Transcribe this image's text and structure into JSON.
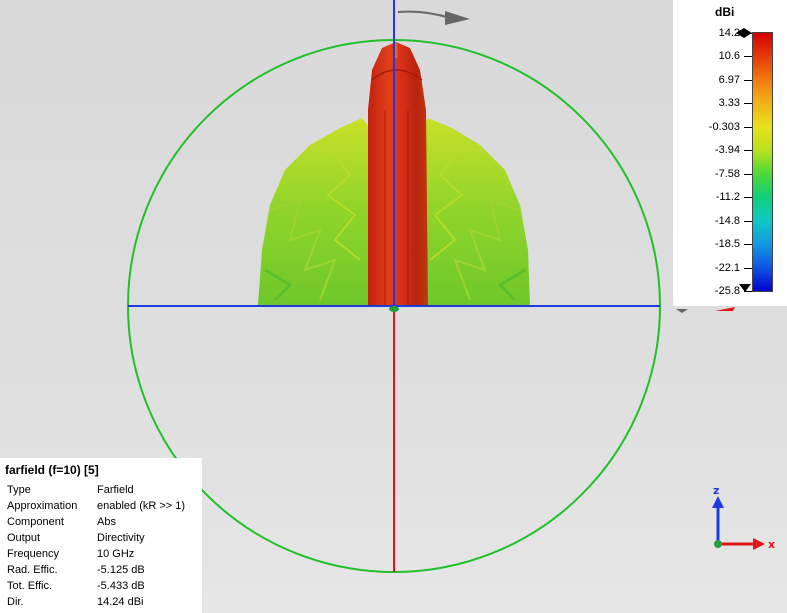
{
  "colorbar": {
    "unit": "dBi",
    "ticks": [
      "14.2",
      "10.6",
      "6.97",
      "3.33",
      "-0.303",
      "-3.94",
      "-7.58",
      "-11.2",
      "-14.8",
      "-18.5",
      "-22.1",
      "-25.8"
    ],
    "gradient": [
      "#d40000",
      "#e63a0a",
      "#f07a10",
      "#f3b21a",
      "#e7e01c",
      "#b8e21c",
      "#4fd83a",
      "#0fcf7a",
      "#0fc9c2",
      "#1398e3",
      "#0f56e3",
      "#0000cf"
    ]
  },
  "info": {
    "title": "farfield (f=10) [5]",
    "rows": [
      {
        "key": "Type",
        "value": "Farfield"
      },
      {
        "key": "Approximation",
        "value": "enabled (kR >> 1)"
      },
      {
        "key": "Component",
        "value": "Abs"
      },
      {
        "key": "Output",
        "value": "Directivity"
      },
      {
        "key": "Frequency",
        "value": "10 GHz"
      },
      {
        "key": "Rad. Effic.",
        "value": "-5.125 dB"
      },
      {
        "key": "Tot. Effic.",
        "value": "-5.433 dB"
      },
      {
        "key": "Dir.",
        "value": "14.24 dBi"
      }
    ]
  },
  "axes": {
    "z_label": "z",
    "x_label": "x"
  },
  "colors": {
    "circle": "#22c02a",
    "axis_blue": "#1f3be0",
    "axis_red": "#e01616"
  }
}
